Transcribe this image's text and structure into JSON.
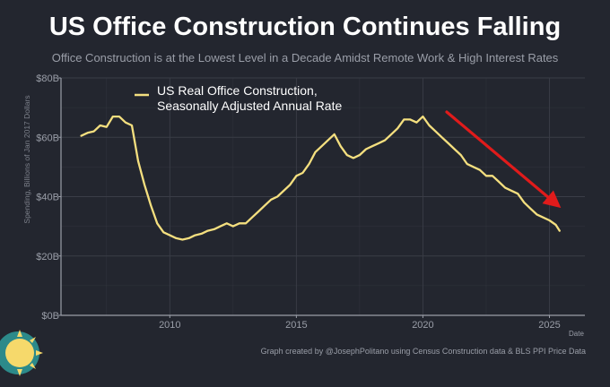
{
  "header": {
    "title": "US Office Construction Continues Falling",
    "subtitle": "Office Construction is at the Lowest Level in a Decade Amidst Remote Work & High Interest Rates"
  },
  "footer": {
    "credit": "Graph created by @JosephPolitano using Census Construction data & BLS PPI Price Data"
  },
  "colors": {
    "background": "#23262f",
    "series": "#f4df7f",
    "arrow": "#e01b1b",
    "grid": "#3a3d47",
    "text_muted": "#9a9ea8"
  },
  "chart_data": {
    "type": "line",
    "xlabel": "Date",
    "ylabel": "Spending, Billions of Jan 2017 Dollars",
    "xlim": [
      2005.7,
      2026.4
    ],
    "ylim": [
      0,
      80
    ],
    "x_ticks": [
      2010,
      2015,
      2020,
      2025
    ],
    "x_tick_labels": [
      "2010",
      "2015",
      "2020",
      "2025"
    ],
    "y_ticks": [
      0,
      20,
      40,
      60,
      80
    ],
    "y_tick_labels": [
      "$0B",
      "$20B",
      "$40B",
      "$60B",
      "$80B"
    ],
    "grid": true,
    "legend_position": "top-left",
    "series": [
      {
        "name": "US Real Office Construction,\nSeasonally Adjusted Annual Rate",
        "x": [
          2006.5,
          2006.75,
          2007.0,
          2007.25,
          2007.5,
          2007.75,
          2008.0,
          2008.25,
          2008.5,
          2008.75,
          2009.0,
          2009.25,
          2009.5,
          2009.75,
          2010.0,
          2010.25,
          2010.5,
          2010.75,
          2011.0,
          2011.25,
          2011.5,
          2011.75,
          2012.0,
          2012.25,
          2012.5,
          2012.75,
          2013.0,
          2013.25,
          2013.5,
          2013.75,
          2014.0,
          2014.25,
          2014.5,
          2014.75,
          2015.0,
          2015.25,
          2015.5,
          2015.75,
          2016.0,
          2016.25,
          2016.5,
          2016.75,
          2017.0,
          2017.25,
          2017.5,
          2017.75,
          2018.0,
          2018.25,
          2018.5,
          2018.75,
          2019.0,
          2019.25,
          2019.5,
          2019.75,
          2020.0,
          2020.25,
          2020.5,
          2020.75,
          2021.0,
          2021.25,
          2021.5,
          2021.75,
          2022.0,
          2022.25,
          2022.5,
          2022.75,
          2023.0,
          2023.25,
          2023.5,
          2023.75,
          2024.0,
          2024.25,
          2024.5,
          2024.75,
          2025.0,
          2025.25,
          2025.4
        ],
        "values": [
          60.5,
          61.5,
          62,
          64,
          63.5,
          67,
          67,
          65,
          64,
          52,
          44,
          37,
          31,
          28,
          27,
          26,
          25.5,
          26,
          27,
          27.5,
          28.5,
          29,
          30,
          31,
          30,
          31,
          31,
          33,
          35,
          37,
          39,
          40,
          42,
          44,
          47,
          48,
          51,
          55,
          57,
          59,
          61,
          57,
          54,
          53,
          54,
          56,
          57,
          58,
          59,
          61,
          63,
          66,
          66,
          65,
          67,
          64,
          62,
          60,
          58,
          56,
          54,
          51,
          50,
          49,
          47,
          47,
          45,
          43,
          42,
          41,
          38,
          36,
          34,
          33,
          32,
          30.5,
          28.5
        ]
      }
    ]
  }
}
